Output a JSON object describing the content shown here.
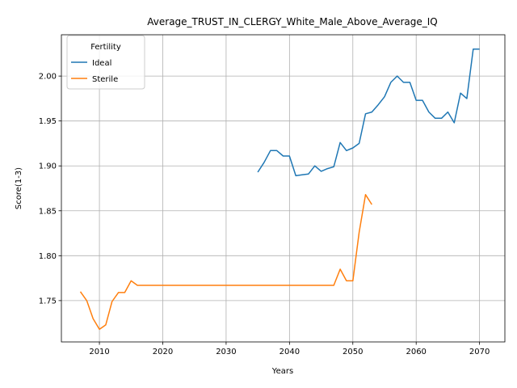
{
  "chart_data": {
    "type": "line",
    "title": "Average_TRUST_IN_CLERGY_White_Male_Above_Average_IQ",
    "xlabel": "Years",
    "ylabel": "Score(1-3)",
    "xlim": [
      2004,
      2074
    ],
    "ylim": [
      1.704,
      2.046
    ],
    "xticks": [
      2010,
      2020,
      2030,
      2040,
      2050,
      2060,
      2070
    ],
    "yticks": [
      1.75,
      1.8,
      1.85,
      1.9,
      1.95,
      2.0
    ],
    "ytick_labels": [
      "1.75",
      "1.80",
      "1.85",
      "1.90",
      "1.95",
      "2.00"
    ],
    "grid": true,
    "legend": {
      "title": "Fertility",
      "placement": "top-left"
    },
    "series": [
      {
        "name": "Ideal",
        "color": "#1f77b4",
        "x": [
          2035,
          2036,
          2037,
          2038,
          2039,
          2040,
          2041,
          2042,
          2043,
          2044,
          2045,
          2046,
          2047,
          2048,
          2049,
          2050,
          2051,
          2052,
          2053,
          2054,
          2055,
          2056,
          2057,
          2058,
          2059,
          2060,
          2061,
          2062,
          2063,
          2064,
          2065,
          2066,
          2067,
          2068,
          2069,
          2070
        ],
        "y": [
          1.893,
          1.904,
          1.917,
          1.917,
          1.911,
          1.911,
          1.889,
          1.89,
          1.891,
          1.9,
          1.894,
          1.897,
          1.899,
          1.926,
          1.917,
          1.92,
          1.925,
          1.958,
          1.96,
          1.968,
          1.977,
          1.993,
          2.0,
          1.993,
          1.993,
          1.973,
          1.973,
          1.96,
          1.953,
          1.953,
          1.96,
          1.948,
          1.981,
          1.975,
          2.03,
          2.03
        ]
      },
      {
        "name": "Sterile",
        "color": "#ff7f0e",
        "x": [
          2007,
          2008,
          2009,
          2010,
          2011,
          2012,
          2013,
          2014,
          2015,
          2016,
          2017,
          2018,
          2019,
          2020,
          2021,
          2022,
          2023,
          2024,
          2025,
          2026,
          2027,
          2028,
          2029,
          2030,
          2031,
          2032,
          2033,
          2034,
          2035,
          2036,
          2037,
          2038,
          2039,
          2040,
          2041,
          2042,
          2043,
          2044,
          2045,
          2046,
          2047,
          2048,
          2049,
          2050,
          2051,
          2052,
          2053
        ],
        "y": [
          1.76,
          1.75,
          1.73,
          1.718,
          1.723,
          1.749,
          1.759,
          1.759,
          1.772,
          1.767,
          1.767,
          1.767,
          1.767,
          1.767,
          1.767,
          1.767,
          1.767,
          1.767,
          1.767,
          1.767,
          1.767,
          1.767,
          1.767,
          1.767,
          1.767,
          1.767,
          1.767,
          1.767,
          1.767,
          1.767,
          1.767,
          1.767,
          1.767,
          1.767,
          1.767,
          1.767,
          1.767,
          1.767,
          1.767,
          1.767,
          1.767,
          1.785,
          1.772,
          1.772,
          1.826,
          1.868,
          1.857
        ]
      }
    ]
  }
}
